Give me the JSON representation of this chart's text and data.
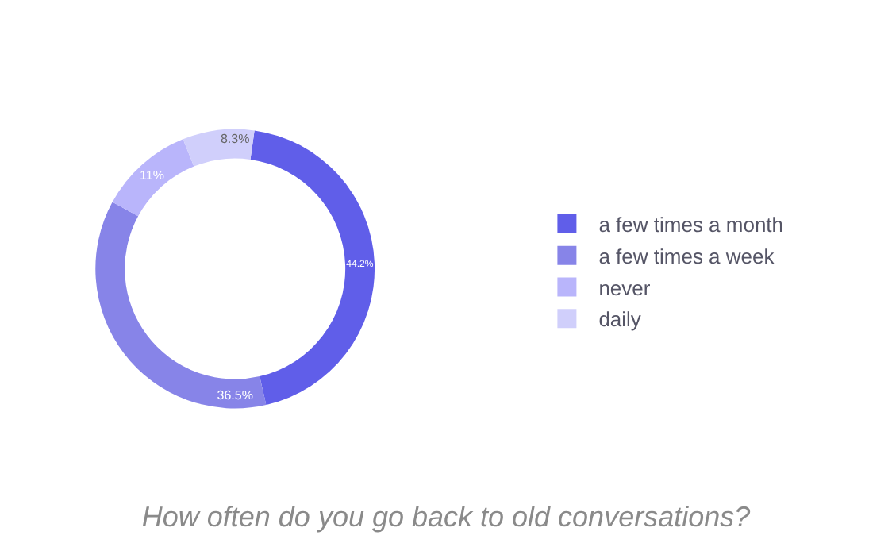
{
  "chart_data": {
    "type": "donut",
    "title": "How often do you go back to old conversations?",
    "categories": [
      "a few times a month",
      "a few times a week",
      "never",
      "daily"
    ],
    "values": [
      44.2,
      36.5,
      11,
      8.3
    ],
    "value_labels": [
      "44.2%",
      "36.5%",
      "11%",
      "8.3%"
    ],
    "colors": [
      "#605ee9",
      "#8784e8",
      "#b9b5fb",
      "#d0cffb"
    ],
    "legend": "right"
  }
}
